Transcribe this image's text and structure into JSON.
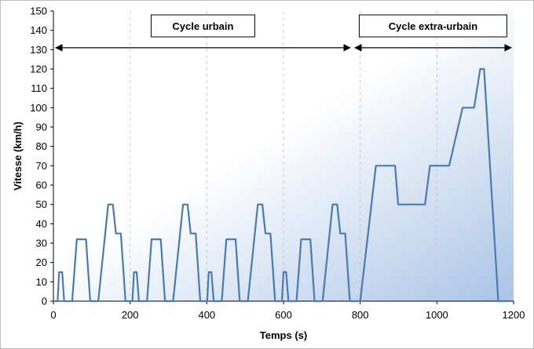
{
  "chart_data": {
    "type": "line",
    "title": "",
    "xlabel": "Temps (s)",
    "ylabel": "Vitesse (km/h)",
    "xlim": [
      0,
      1200
    ],
    "ylim": [
      0,
      150
    ],
    "xticks": [
      0,
      200,
      400,
      600,
      800,
      1000,
      1200
    ],
    "yticks": [
      0,
      10,
      20,
      30,
      40,
      50,
      60,
      70,
      80,
      90,
      100,
      110,
      120,
      130,
      140,
      150
    ],
    "grid": "vertical dashed",
    "legend": "none",
    "annotations": [
      {
        "label": "Cycle urbain",
        "x_start": 0,
        "x_end": 780,
        "y": 131
      },
      {
        "label": "Cycle extra-urbain",
        "x_start": 780,
        "x_end": 1200,
        "y": 131
      }
    ],
    "series": [
      {
        "name": "Vitesse",
        "x": [
          0,
          11,
          15,
          23,
          28,
          49,
          61,
          85,
          96,
          117,
          0,
          0
        ],
        "y": [
          0,
          0,
          15,
          15,
          0,
          0,
          32,
          32,
          0,
          0,
          0,
          0
        ]
      }
    ],
    "segments": {
      "urban_cycle_x": [
        0,
        11,
        15,
        23,
        28,
        49,
        61,
        85,
        96,
        117,
        143,
        155,
        163,
        176,
        188,
        195,
        206,
        210,
        217,
        223,
        244,
        256,
        280,
        291,
        312,
        338,
        350,
        358,
        371,
        383,
        390,
        401,
        405,
        412,
        418,
        439,
        451,
        475,
        486,
        507,
        533,
        545,
        553,
        566,
        578,
        585,
        596,
        600,
        607,
        613,
        634,
        646,
        670,
        681,
        702,
        728,
        740,
        748,
        761,
        773,
        780
      ],
      "urban_cycle_y": [
        0,
        0,
        15,
        15,
        0,
        0,
        32,
        32,
        0,
        0,
        50,
        50,
        35,
        35,
        0,
        0,
        0,
        15,
        15,
        0,
        0,
        32,
        32,
        0,
        0,
        50,
        50,
        35,
        35,
        0,
        0,
        0,
        15,
        15,
        0,
        0,
        32,
        32,
        0,
        0,
        50,
        50,
        35,
        35,
        0,
        0,
        0,
        15,
        15,
        0,
        0,
        32,
        32,
        0,
        0,
        50,
        50,
        35,
        35,
        0,
        0
      ],
      "extra_urban_x": [
        800,
        841,
        891,
        899,
        969,
        982,
        1032,
        1067,
        1097,
        1113,
        1123,
        1160,
        1180
      ],
      "extra_urban_y": [
        0,
        70,
        70,
        50,
        50,
        70,
        70,
        100,
        100,
        120,
        120,
        0,
        0
      ]
    }
  },
  "colors": {
    "line": "#4a7ab0",
    "gradient_start": "#ffffff",
    "gradient_end": "#a9c3e6",
    "grid": "#c8c8c8"
  }
}
